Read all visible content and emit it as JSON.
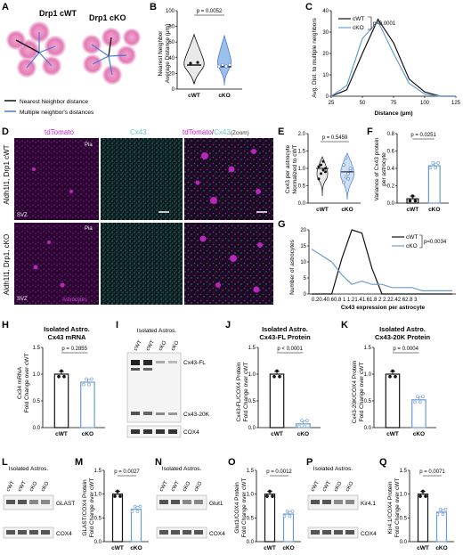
{
  "colors": {
    "cwt": "#111111",
    "cko": "#6a9bd1",
    "magenta": "#d21cd6",
    "cyan": "#7fd0d0",
    "red_wt": "#d04060",
    "blue": "#2d64c8",
    "black_line": "#111111"
  },
  "panel_A": {
    "label": "A",
    "title_cwt": "Drp1 cWT",
    "title_cko": "Drp1 cKO",
    "legend": [
      {
        "text": "Nearest Neighbor distance",
        "color": "#111111"
      },
      {
        "text": "Multiple neighbor's distances",
        "color": "#4a78d8"
      }
    ]
  },
  "panel_B": {
    "label": "B",
    "pvalue": "p = 0.0052",
    "ylabel": "Nearest Neighbor Average Distance (μm)",
    "yticks": [
      "0",
      "20",
      "40",
      "60",
      "80",
      "100"
    ],
    "groups": [
      "cWT",
      "cKO"
    ]
  },
  "panel_C": {
    "label": "C",
    "pvalue": "p<0.0001",
    "ylabel": "Avg. Dist. to multiple neighbors",
    "xlabel": "Distance (μm)",
    "xticks": [
      "25",
      "50",
      "75",
      "100",
      "125"
    ],
    "yticks": [
      "0",
      "10",
      "20",
      "30",
      "40"
    ],
    "legend": [
      "cWT",
      "cKO"
    ]
  },
  "panel_D": {
    "label": "D",
    "col1": "tdTomato",
    "col2": "Cx43",
    "col3_a": "tdTomato",
    "col3_sep": "/",
    "col3_b": "Cx43",
    "col3_c": "(Zoom)",
    "row1": "Aldh1l1, Drp1 cWT",
    "row2": "Aldh1l1, Drp1, cKO",
    "pia1": "Pia",
    "pia2": "Pia",
    "svz1": "SVZ",
    "svz2": "SVZ",
    "astro": "Astrocytes"
  },
  "panel_E": {
    "label": "E",
    "pvalue": "p = 0.5459",
    "ylabel": "Cx43 per astrocyte Normalized to cWT",
    "yticks": [
      "0.0",
      "0.5",
      "1.0",
      "1.5",
      "2.0"
    ],
    "groups": [
      "cWT",
      "cKO"
    ]
  },
  "panel_F": {
    "label": "F",
    "pvalue": "p = 0.0251",
    "ylabel": "Variance of Cx43 protein per astrocyte",
    "yticks": [
      "0.0",
      "0.2",
      "0.4",
      "0.6",
      "0.8"
    ],
    "groups": [
      "cWT",
      "cKO"
    ]
  },
  "panel_G": {
    "label": "G",
    "pvalue": "p=0.0034",
    "ylabel": "Number of astrocytes",
    "xlabel": "Cx43 expression per astrocyte",
    "yticks": [
      "0",
      "5",
      "10",
      "15",
      "20"
    ],
    "xticks": "0.20.40.60.8 1 1.21.41.61.8 2 2.22.42.62.8 3",
    "legend": [
      "cWT",
      "cKO"
    ]
  },
  "panel_H": {
    "label": "H",
    "title1": "Isolated Astro.",
    "title2": "Cx43 mRNA",
    "pvalue": "p = 0.2855",
    "ylabel": "Cx34 mRNA Fold Change over cWT",
    "yticks": [
      "0.0",
      "0.5",
      "1.0",
      "1.5"
    ],
    "groups": [
      "cWT",
      "cKO"
    ]
  },
  "panel_I": {
    "label": "I",
    "title": "Isolated Astros.",
    "lanes": [
      "cWT",
      "cWT",
      "cKO",
      "cKO"
    ],
    "band1": "Cx43-FL",
    "band2": "Cx43-20K",
    "band3": "COX4"
  },
  "panel_J": {
    "label": "J",
    "title1": "Isolated Astro.",
    "title2": "Cx43-FL Protein",
    "pvalue": "p < 0.0001",
    "ylabel": "Cx43-FL/COX4 Protein Fold Change over cWT",
    "yticks": [
      "0.0",
      "0.5",
      "1.0",
      "1.5"
    ],
    "groups": [
      "cWT",
      "cKO"
    ]
  },
  "panel_K": {
    "label": "K",
    "title1": "Isolated Astro.",
    "title2": "Cx43-20K Protein",
    "pvalue": "p = 0.0004",
    "ylabel": "Cx43-20K/COX4 Protein Fold Change over cWT",
    "yticks": [
      "0.0",
      "0.5",
      "1.0",
      "1.5"
    ],
    "groups": [
      "cWT",
      "cKO"
    ]
  },
  "panel_L": {
    "label": "L",
    "title": "Isolated Astros.",
    "lanes": [
      "cWT",
      "cWT",
      "cKO",
      "cKO"
    ],
    "band1": "GLAST",
    "band2": "COX4"
  },
  "panel_M": {
    "label": "M",
    "pvalue": "p = 0.0027",
    "ylabel": "GLAST/COX4 Protein Fold Change over cWT",
    "yticks": [
      "0.0",
      "0.5",
      "1.0",
      "1.5"
    ],
    "groups": [
      "cWT",
      "cKO"
    ]
  },
  "panel_N": {
    "label": "N",
    "title": "Isolated Astros.",
    "lanes": [
      "cWT",
      "cWT",
      "cKO",
      "cKO"
    ],
    "band1": "Glut1",
    "band2": "COX4"
  },
  "panel_O": {
    "label": "O",
    "pvalue": "p = 0.0012",
    "ylabel": "Glut1/COX4 Protein Fold Change over cWT",
    "yticks": [
      "0.0",
      "0.5",
      "1.0",
      "1.5"
    ],
    "groups": [
      "cWT",
      "cKO"
    ]
  },
  "panel_P": {
    "label": "P",
    "title": "Isolated Astros.",
    "lanes": [
      "cWT",
      "cWT",
      "cKO",
      "cKO"
    ],
    "band1": "Kir4.1",
    "band2": "COX4"
  },
  "panel_Q": {
    "label": "Q",
    "pvalue": "p = 0.0071",
    "ylabel": "Kir4.1/COX4 Protein Fold Change over cWT",
    "yticks": [
      "0.0",
      "0.5",
      "1.0",
      "1.5"
    ],
    "groups": [
      "cWT",
      "cKO"
    ]
  },
  "chart_data": [
    {
      "type": "violin",
      "panel": "B",
      "categories": [
        "cWT",
        "cKO"
      ],
      "values": [
        33,
        30
      ],
      "ylim": [
        0,
        100
      ]
    },
    {
      "type": "line",
      "panel": "C",
      "x": [
        25,
        37.5,
        50,
        62.5,
        75,
        87.5,
        100,
        112.5,
        125
      ],
      "series": [
        {
          "name": "cWT",
          "values": [
            0,
            3,
            20,
            36,
            25,
            8,
            2,
            0,
            0
          ]
        },
        {
          "name": "cKO",
          "values": [
            0,
            5,
            27,
            35,
            20,
            6,
            1,
            0,
            0
          ]
        }
      ],
      "xlim": [
        25,
        125
      ],
      "ylim": [
        0,
        40
      ]
    },
    {
      "type": "violin",
      "panel": "E",
      "categories": [
        "cWT",
        "cKO"
      ],
      "values": [
        1.0,
        0.9
      ],
      "ylim": [
        0,
        2
      ]
    },
    {
      "type": "bar",
      "panel": "F",
      "categories": [
        "cWT",
        "cKO"
      ],
      "values": [
        0.05,
        0.43
      ],
      "ylim": [
        0,
        0.8
      ]
    },
    {
      "type": "line",
      "panel": "G",
      "x": [
        0.2,
        0.4,
        0.6,
        0.8,
        1.0,
        1.2,
        1.4,
        1.6,
        1.8,
        2.0,
        2.2,
        2.4,
        2.6,
        2.8,
        3.0
      ],
      "series": [
        {
          "name": "cWT",
          "values": [
            0,
            0,
            0,
            11,
            20,
            19,
            8,
            0,
            0,
            0,
            0,
            0,
            0,
            0,
            0
          ]
        },
        {
          "name": "cKO",
          "values": [
            14,
            12,
            10,
            6,
            3,
            4,
            3,
            3,
            2,
            2,
            2,
            1,
            1,
            1,
            1
          ]
        }
      ],
      "xlim": [
        0.2,
        3
      ],
      "ylim": [
        0,
        20
      ]
    },
    {
      "type": "bar",
      "panel": "H",
      "categories": [
        "cWT",
        "cKO"
      ],
      "values": [
        1.0,
        0.85
      ],
      "ylim": [
        0,
        1.5
      ]
    },
    {
      "type": "bar",
      "panel": "J",
      "categories": [
        "cWT",
        "cKO"
      ],
      "values": [
        1.0,
        0.07
      ],
      "ylim": [
        0,
        1.5
      ]
    },
    {
      "type": "bar",
      "panel": "K",
      "categories": [
        "cWT",
        "cKO"
      ],
      "values": [
        1.0,
        0.52
      ],
      "ylim": [
        0,
        1.5
      ]
    },
    {
      "type": "bar",
      "panel": "M",
      "categories": [
        "cWT",
        "cKO"
      ],
      "values": [
        1.0,
        0.68
      ],
      "ylim": [
        0,
        1.5
      ]
    },
    {
      "type": "bar",
      "panel": "O",
      "categories": [
        "cWT",
        "cKO"
      ],
      "values": [
        1.0,
        0.58
      ],
      "ylim": [
        0,
        1.5
      ]
    },
    {
      "type": "bar",
      "panel": "Q",
      "categories": [
        "cWT",
        "cKO"
      ],
      "values": [
        1.0,
        0.62
      ],
      "ylim": [
        0,
        1.5
      ]
    }
  ]
}
